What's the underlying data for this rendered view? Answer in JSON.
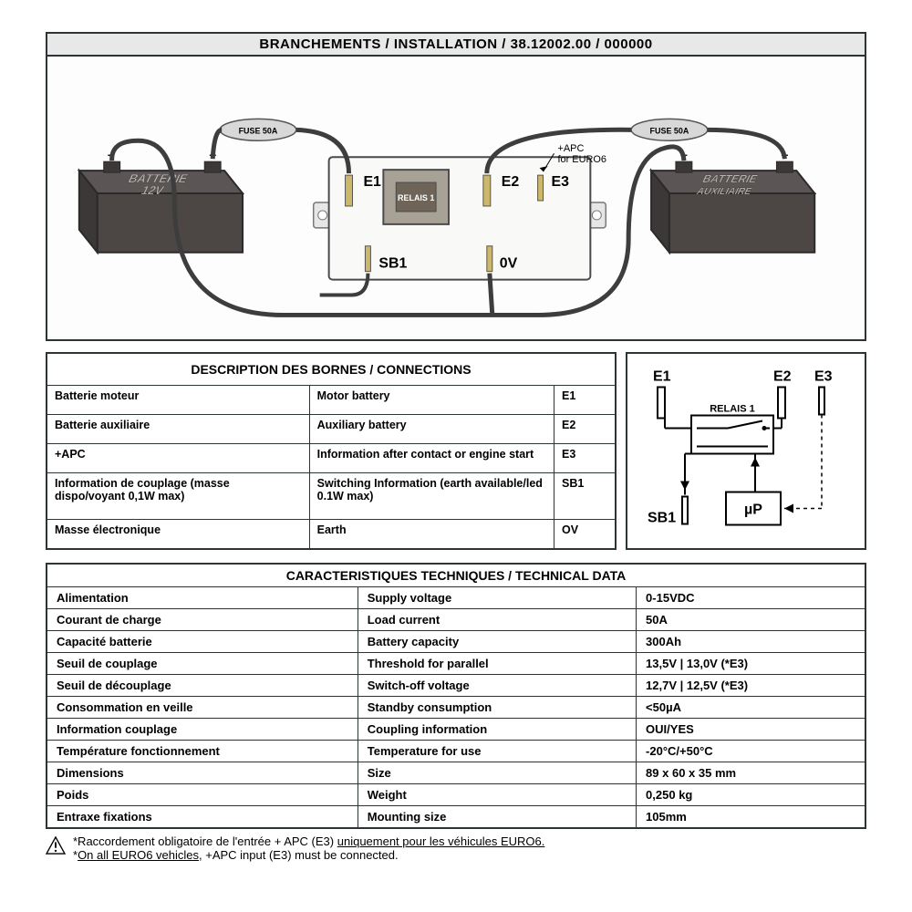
{
  "colors": {
    "titleBg": "#e8e8e8",
    "border": "#2d3436",
    "batteryFill": "#5b5655",
    "batterySide": "#3c3837",
    "relayBody": "#a8a195",
    "relayInner": "#6e6558",
    "relayText": "#ffffff",
    "fuseBody": "#d8d8d8",
    "wireE1": "#3d3d3d",
    "wireE2": "#3d3d3d",
    "wire0V": "#3d3d3d",
    "wireSB1": "#3d3d3d"
  },
  "header": {
    "title": "BRANCHEMENTS / INSTALLATION / 38.12002.00 / 000000"
  },
  "diagram": {
    "battery1_top": "BATTERIE",
    "battery1_bottom": "12V",
    "battery2_top": "BATTERIE",
    "battery2_bottom": "AUXILIAIRE",
    "fuse_label": "FUSE 50A",
    "relay_label": "RELAIS 1",
    "pin_e1": "E1",
    "pin_e2": "E2",
    "pin_e3": "E3",
    "pin_sb1": "SB1",
    "pin_0v": "0V",
    "apc_note1": "+APC",
    "apc_note2": "for EURO6"
  },
  "connections": {
    "header": "DESCRIPTION DES BORNES / CONNECTIONS",
    "rows": [
      {
        "fr": "Batterie moteur",
        "en": "Motor battery",
        "code": "E1"
      },
      {
        "fr": "Batterie auxiliaire",
        "en": "Auxiliary battery",
        "code": "E2"
      },
      {
        "fr": "+APC",
        "en": "Information after contact or engine start",
        "code": "E3"
      },
      {
        "fr": "Information de couplage (masse dispo/voyant 0,1W max)",
        "en": "Switching Information (earth available/led 0.1W max)",
        "code": "SB1"
      },
      {
        "fr": "Masse électronique",
        "en": "Earth",
        "code": "OV"
      }
    ]
  },
  "schematic": {
    "e1": "E1",
    "e2": "E2",
    "e3": "E3",
    "sb1": "SB1",
    "relay": "RELAIS 1",
    "up": "µP"
  },
  "technical": {
    "header": "CARACTERISTIQUES TECHNIQUES / TECHNICAL DATA",
    "rows": [
      {
        "fr": "Alimentation",
        "en": "Supply voltage",
        "val": "0-15VDC"
      },
      {
        "fr": "Courant de charge",
        "en": "Load current",
        "val": "50A"
      },
      {
        "fr": "Capacité batterie",
        "en": "Battery capacity",
        "val": "300Ah"
      },
      {
        "fr": "Seuil de couplage",
        "en": "Threshold for parallel",
        "val": "13,5V  | 13,0V (*E3)"
      },
      {
        "fr": "Seuil de découplage",
        "en": "Switch-off voltage",
        "val": "12,7V  | 12,5V (*E3)"
      },
      {
        "fr": "Consommation en veille",
        "en": "Standby consumption",
        "val": "<50µA"
      },
      {
        "fr": "Information couplage",
        "en": "Coupling information",
        "val": "OUI/YES"
      },
      {
        "fr": "Température fonctionnement",
        "en": "Temperature for use",
        "val": "-20°C/+50°C"
      },
      {
        "fr": "Dimensions",
        "en": "Size",
        "val": "89 x 60 x 35 mm"
      },
      {
        "fr": "Poids",
        "en": "Weight",
        "val": "0,250 kg"
      },
      {
        "fr": "Entraxe fixations",
        "en": "Mounting size",
        "val": "105mm"
      }
    ]
  },
  "footnotes": {
    "line1_a": "*Raccordement obligatoire de l'entrée + APC (E3) ",
    "line1_b": "uniquement pour les véhicules EURO6.",
    "line2_a": "*",
    "line2_b": "On all EURO6 vehicles,",
    "line2_c": " +APC input (E3) must be connected."
  }
}
